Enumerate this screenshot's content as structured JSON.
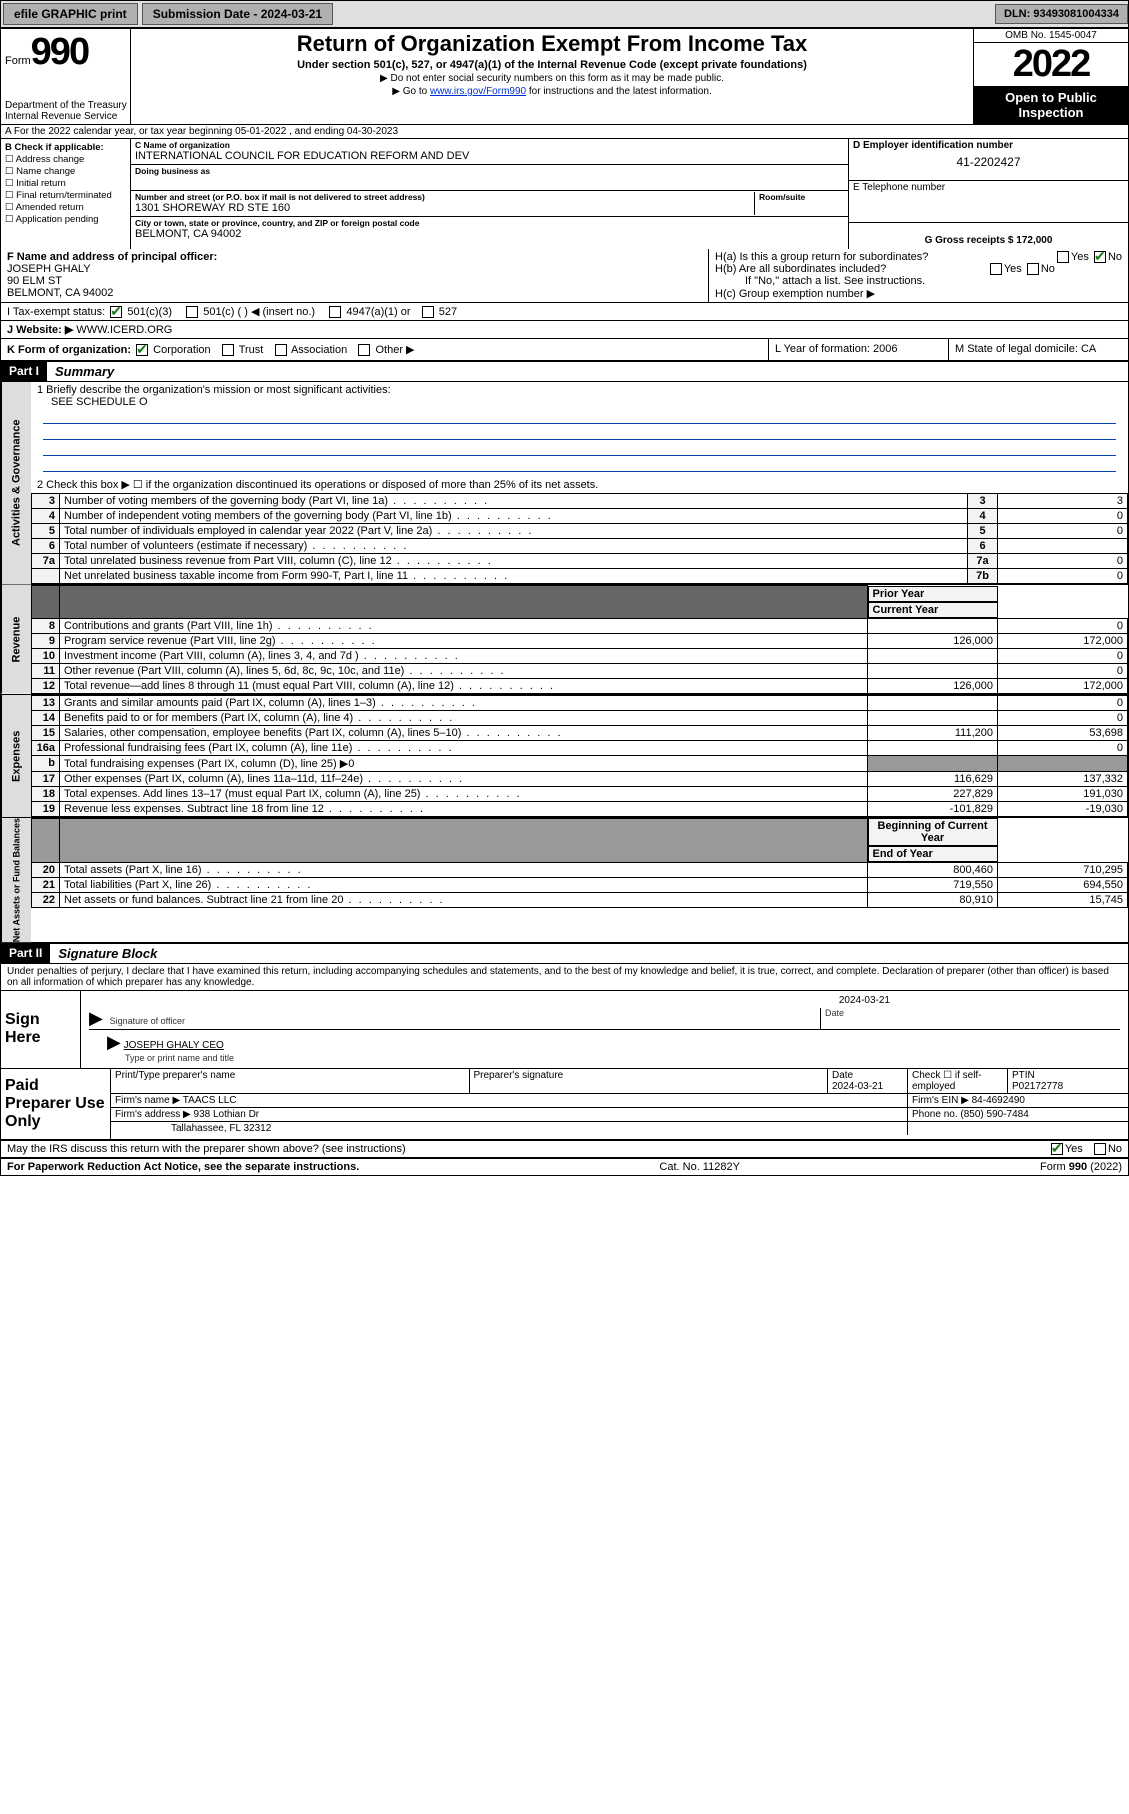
{
  "topbar": {
    "efile": "efile GRAPHIC print",
    "submission_label": "Submission Date - 2024-03-21",
    "dln": "DLN: 93493081004334"
  },
  "header": {
    "form_prefix": "Form",
    "form_no": "990",
    "title": "Return of Organization Exempt From Income Tax",
    "subtitle": "Under section 501(c), 527, or 4947(a)(1) of the Internal Revenue Code (except private foundations)",
    "inst1": "▶ Do not enter social security numbers on this form as it may be made public.",
    "inst2_prefix": "▶ Go to ",
    "inst2_link": "www.irs.gov/Form990",
    "inst2_suffix": " for instructions and the latest information.",
    "dept": "Department of the Treasury\nInternal Revenue Service",
    "omb": "OMB No. 1545-0047",
    "year": "2022",
    "oti": "Open to Public Inspection"
  },
  "lineA": "A For the 2022 calendar year, or tax year beginning 05-01-2022    , and ending 04-30-2023",
  "blockB": {
    "title": "B Check if applicable:",
    "items": [
      "Address change",
      "Name change",
      "Initial return",
      "Final return/terminated",
      "Amended return",
      "Application pending"
    ]
  },
  "blockC": {
    "name_lbl": "C Name of organization",
    "name": "INTERNATIONAL COUNCIL FOR EDUCATION REFORM AND DEV",
    "dba_lbl": "Doing business as",
    "dba": "",
    "addr_lbl": "Number and street (or P.O. box if mail is not delivered to street address)",
    "addr": "1301 SHOREWAY RD STE 160",
    "room_lbl": "Room/suite",
    "city_lbl": "City or town, state or province, country, and ZIP or foreign postal code",
    "city": "BELMONT, CA  94002"
  },
  "blockD": {
    "ein_lbl": "D Employer identification number",
    "ein": "41-2202427",
    "tel_lbl": "E Telephone number",
    "tel": "",
    "gross_lbl": "G Gross receipts $ 172,000"
  },
  "blockF": {
    "lbl": "F Name and address of principal officer:",
    "name": "JOSEPH GHALY",
    "addr1": "90 ELM ST",
    "addr2": "BELMONT, CA  94002"
  },
  "blockH": {
    "ha": "H(a)  Is this a group return for subordinates?",
    "ha_yes": "Yes",
    "ha_no": "No",
    "hb": "H(b)  Are all subordinates included?",
    "hb_note": "If \"No,\" attach a list. See instructions.",
    "hc": "H(c)  Group exemption number ▶"
  },
  "lineI": {
    "lbl": "I    Tax-exempt status:",
    "opt1": "501(c)(3)",
    "opt2": "501(c) (  ) ◀ (insert no.)",
    "opt3": "4947(a)(1) or",
    "opt4": "527"
  },
  "lineJ": {
    "lbl": "J   Website: ▶",
    "val": "WWW.ICERD.ORG"
  },
  "lineK": {
    "lbl": "K Form of organization:",
    "opts": [
      "Corporation",
      "Trust",
      "Association",
      "Other ▶"
    ],
    "yof_lbl": "L Year of formation: 2006",
    "dom_lbl": "M State of legal domicile: CA"
  },
  "part1": {
    "hdr": "Part I",
    "title": "Summary",
    "l1": "1  Briefly describe the organization's mission or most significant activities:",
    "l1val": "SEE SCHEDULE O",
    "l2": "2  Check this box ▶ ☐  if the organization discontinued its operations or disposed of more than 25% of its net assets.",
    "side_ag": "Activities & Governance",
    "side_rev": "Revenue",
    "side_exp": "Expenses",
    "side_na": "Net Assets or Fund Balances",
    "rows_gov": [
      {
        "n": "3",
        "d": "Number of voting members of the governing body (Part VI, line 1a)",
        "b": "3",
        "v": "3"
      },
      {
        "n": "4",
        "d": "Number of independent voting members of the governing body (Part VI, line 1b)",
        "b": "4",
        "v": "0"
      },
      {
        "n": "5",
        "d": "Total number of individuals employed in calendar year 2022 (Part V, line 2a)",
        "b": "5",
        "v": "0"
      },
      {
        "n": "6",
        "d": "Total number of volunteers (estimate if necessary)",
        "b": "6",
        "v": ""
      },
      {
        "n": "7a",
        "d": "Total unrelated business revenue from Part VIII, column (C), line 12",
        "b": "7a",
        "v": "0"
      },
      {
        "n": "",
        "d": "Net unrelated business taxable income from Form 990-T, Part I, line 11",
        "b": "7b",
        "v": "0"
      }
    ],
    "col_prior": "Prior Year",
    "col_curr": "Current Year",
    "rows_rev": [
      {
        "n": "8",
        "d": "Contributions and grants (Part VIII, line 1h)",
        "p": "",
        "c": "0"
      },
      {
        "n": "9",
        "d": "Program service revenue (Part VIII, line 2g)",
        "p": "126,000",
        "c": "172,000"
      },
      {
        "n": "10",
        "d": "Investment income (Part VIII, column (A), lines 3, 4, and 7d )",
        "p": "",
        "c": "0"
      },
      {
        "n": "11",
        "d": "Other revenue (Part VIII, column (A), lines 5, 6d, 8c, 9c, 10c, and 11e)",
        "p": "",
        "c": "0"
      },
      {
        "n": "12",
        "d": "Total revenue—add lines 8 through 11 (must equal Part VIII, column (A), line 12)",
        "p": "126,000",
        "c": "172,000"
      }
    ],
    "rows_exp": [
      {
        "n": "13",
        "d": "Grants and similar amounts paid (Part IX, column (A), lines 1–3)",
        "p": "",
        "c": "0"
      },
      {
        "n": "14",
        "d": "Benefits paid to or for members (Part IX, column (A), line 4)",
        "p": "",
        "c": "0"
      },
      {
        "n": "15",
        "d": "Salaries, other compensation, employee benefits (Part IX, column (A), lines 5–10)",
        "p": "111,200",
        "c": "53,698"
      },
      {
        "n": "16a",
        "d": "Professional fundraising fees (Part IX, column (A), line 11e)",
        "p": "",
        "c": "0"
      },
      {
        "n": "b",
        "d": "Total fundraising expenses (Part IX, column (D), line 25) ▶0",
        "p": "—",
        "c": "—"
      },
      {
        "n": "17",
        "d": "Other expenses (Part IX, column (A), lines 11a–11d, 11f–24e)",
        "p": "116,629",
        "c": "137,332"
      },
      {
        "n": "18",
        "d": "Total expenses. Add lines 13–17 (must equal Part IX, column (A), line 25)",
        "p": "227,829",
        "c": "191,030"
      },
      {
        "n": "19",
        "d": "Revenue less expenses. Subtract line 18 from line 12",
        "p": "-101,829",
        "c": "-19,030"
      }
    ],
    "col_boy": "Beginning of Current Year",
    "col_eoy": "End of Year",
    "rows_na": [
      {
        "n": "20",
        "d": "Total assets (Part X, line 16)",
        "p": "800,460",
        "c": "710,295"
      },
      {
        "n": "21",
        "d": "Total liabilities (Part X, line 26)",
        "p": "719,550",
        "c": "694,550"
      },
      {
        "n": "22",
        "d": "Net assets or fund balances. Subtract line 21 from line 20",
        "p": "80,910",
        "c": "15,745"
      }
    ]
  },
  "part2": {
    "hdr": "Part II",
    "title": "Signature Block",
    "decl": "Under penalties of perjury, I declare that I have examined this return, including accompanying schedules and statements, and to the best of my knowledge and belief, it is true, correct, and complete. Declaration of preparer (other than officer) is based on all information of which preparer has any knowledge."
  },
  "sign": {
    "left": "Sign Here",
    "date": "2024-03-21",
    "sig_lbl": "Signature of officer",
    "date_lbl": "Date",
    "name": "JOSEPH GHALY CEO",
    "name_lbl": "Type or print name and title"
  },
  "prep": {
    "left": "Paid Preparer Use Only",
    "h1": "Print/Type preparer's name",
    "h2": "Preparer's signature",
    "h3": "Date",
    "h3v": "2024-03-21",
    "h4": "Check ☐ if self-employed",
    "h5": "PTIN",
    "h5v": "P02172778",
    "firm_lbl": "Firm's name   ▶",
    "firm": "TAACS LLC",
    "fein_lbl": "Firm's EIN ▶",
    "fein": "84-4692490",
    "faddr_lbl": "Firm's address ▶",
    "faddr": "938 Lothian Dr",
    "faddr2": "Tallahassee, FL  32312",
    "fphone_lbl": "Phone no.",
    "fphone": "(850) 590-7484"
  },
  "footer": {
    "discuss": "May the IRS discuss this return with the preparer shown above? (see instructions)",
    "yes": "Yes",
    "no": "No",
    "pra": "For Paperwork Reduction Act Notice, see the separate instructions.",
    "cat": "Cat. No. 11282Y",
    "form": "Form 990 (2022)"
  }
}
